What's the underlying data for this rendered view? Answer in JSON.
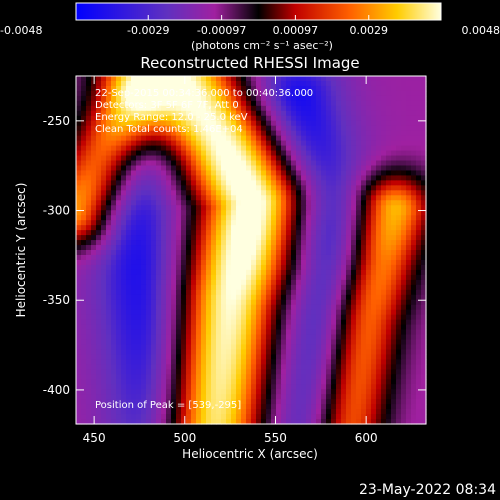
{
  "chart_data": {
    "type": "heatmap",
    "title": "Reconstructed RHESSI Image",
    "xlabel": "Heliocentric X (arcsec)",
    "ylabel": "Heliocentric Y (arcsec)",
    "xlim": [
      440,
      633
    ],
    "ylim": [
      -419,
      -225
    ],
    "x_ticks": [
      450,
      500,
      550,
      600
    ],
    "y_ticks": [
      -250,
      -300,
      -350,
      -400
    ],
    "colorbar": {
      "min": -0.0048,
      "max": 0.0048,
      "ticks": [
        -0.0048,
        -0.0029,
        -0.00097,
        0.00097,
        0.0029,
        0.0048
      ],
      "tick_labels": [
        "-0.0048",
        "-0.0029",
        "-0.00097",
        "0.00097",
        "0.0029",
        "0.0048"
      ],
      "unit_label": "(photons cm⁻² s⁻¹ asec⁻²)",
      "colormap": [
        "#0000ff",
        "#6030c0",
        "#a020a0",
        "#000000",
        "#c00000",
        "#ff6000",
        "#ffcc00",
        "#ffffe0"
      ]
    },
    "annotations": [
      "22-Sep-2015 00:34:36.000 to 00:40:36.000",
      "Detectors: 3F 5F 6F 7F, Att 0",
      "Energy Range: 12.0 - 25.0 keV",
      "Clean    Total counts: 1.46E+04"
    ],
    "peak_label": "Position of Peak = [539,-295]",
    "peak": [
      539,
      -295
    ],
    "timestamp": "23-May-2022 08:34",
    "features": [
      {
        "kind": "main-ridge",
        "path": [
          [
            480,
            -200
          ],
          [
            520,
            -260
          ],
          [
            539,
            -295
          ],
          [
            525,
            -350
          ],
          [
            515,
            -420
          ]
        ],
        "width": 38,
        "peak": 1.0
      },
      {
        "kind": "left-ridge",
        "path": [
          [
            440,
            -300
          ],
          [
            470,
            -240
          ]
        ],
        "width": 28,
        "peak": 0.7
      },
      {
        "kind": "right-ridge",
        "path": [
          [
            615,
            -300
          ],
          [
            600,
            -360
          ],
          [
            590,
            -420
          ]
        ],
        "width": 28,
        "peak": 0.75
      },
      {
        "kind": "trough-left",
        "path": [
          [
            470,
            -280
          ],
          [
            485,
            -420
          ]
        ],
        "width": 40,
        "peak": -0.7
      },
      {
        "kind": "trough-right",
        "path": [
          [
            560,
            -240
          ],
          [
            585,
            -330
          ],
          [
            575,
            -420
          ]
        ],
        "width": 40,
        "peak": -0.8
      }
    ]
  }
}
